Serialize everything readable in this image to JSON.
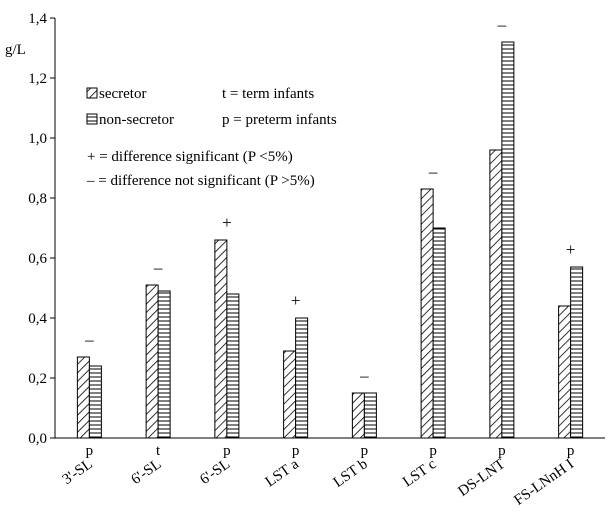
{
  "chart_data": {
    "type": "bar",
    "ylabel": "g/L",
    "ylim": [
      0,
      1.4
    ],
    "ytick_step": 0.2,
    "ytick_labels": [
      "0,0",
      "0,2",
      "0,4",
      "0,6",
      "0,8",
      "1,0",
      "1,2",
      "1,4"
    ],
    "categories": [
      "3'-SL",
      "6'-SL",
      "6'-SL",
      "LST a",
      "LST b",
      "LST c",
      "DS-LNT",
      "FS-LNnH I"
    ],
    "groups": [
      "p",
      "t",
      "p",
      "p",
      "p",
      "p",
      "p",
      "p"
    ],
    "markers": [
      "–",
      "–",
      "+",
      "+",
      "–",
      "–",
      "–",
      "+"
    ],
    "series": [
      {
        "name": "secretor",
        "pattern": "diagonal",
        "values": [
          0.27,
          0.51,
          0.66,
          0.29,
          0.15,
          0.83,
          0.96,
          0.44
        ]
      },
      {
        "name": "non-secretor",
        "pattern": "horizontal",
        "values": [
          0.24,
          0.49,
          0.48,
          0.4,
          0.15,
          0.7,
          1.32,
          0.57
        ]
      }
    ],
    "grid": false,
    "legend_position": "top-left"
  },
  "legend": {
    "secretor": "secretor",
    "non_secretor": "non-secretor",
    "term": "t = term infants",
    "preterm": "p = preterm infants",
    "significant": "+ = difference significant (P <5%)",
    "not_significant": "– = difference not significant (P >5%)"
  },
  "colors": {
    "stroke": "#000000",
    "background": "#ffffff"
  }
}
